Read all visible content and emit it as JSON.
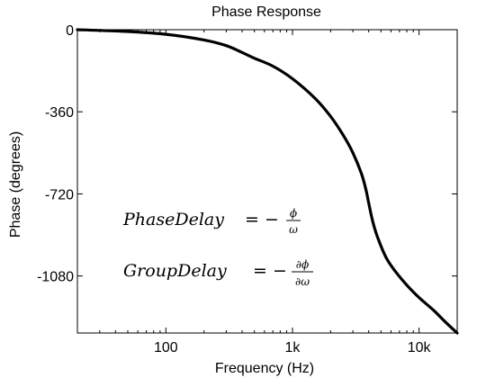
{
  "chart_data": {
    "type": "line",
    "title": "Phase Response",
    "xlabel": "Frequency (Hz)",
    "ylabel": "Phase (degrees)",
    "xscale": "log",
    "xlim": [
      20,
      20000
    ],
    "ylim": [
      -1330,
      0
    ],
    "x_ticks": [
      {
        "value": 100,
        "label": "100"
      },
      {
        "value": 1000,
        "label": "1k"
      },
      {
        "value": 10000,
        "label": "10k"
      }
    ],
    "y_ticks": [
      {
        "value": 0,
        "label": "0"
      },
      {
        "value": -360,
        "label": "-360"
      },
      {
        "value": -720,
        "label": "-720"
      },
      {
        "value": -1080,
        "label": "-1080"
      }
    ],
    "grid": false,
    "series": [
      {
        "color": "#000000",
        "points": [
          [
            20,
            0
          ],
          [
            50,
            -8
          ],
          [
            100,
            -20
          ],
          [
            200,
            -45
          ],
          [
            300,
            -70
          ],
          [
            400,
            -100
          ],
          [
            500,
            -125
          ],
          [
            700,
            -160
          ],
          [
            1000,
            -215
          ],
          [
            1500,
            -300
          ],
          [
            2000,
            -380
          ],
          [
            2500,
            -460
          ],
          [
            3000,
            -540
          ],
          [
            3500,
            -630
          ],
          [
            3800,
            -700
          ],
          [
            4000,
            -760
          ],
          [
            4300,
            -840
          ],
          [
            4700,
            -910
          ],
          [
            5500,
            -1000
          ],
          [
            6500,
            -1060
          ],
          [
            8000,
            -1120
          ],
          [
            10000,
            -1175
          ],
          [
            13000,
            -1230
          ],
          [
            16000,
            -1280
          ],
          [
            20000,
            -1330
          ]
        ]
      }
    ],
    "annotations": {
      "phase_delay": {
        "lhs": "PhaseDelay",
        "num": "ϕ",
        "den": "ω"
      },
      "group_delay": {
        "lhs": "GroupDelay",
        "num": "∂ϕ",
        "den": "∂ω"
      }
    }
  }
}
